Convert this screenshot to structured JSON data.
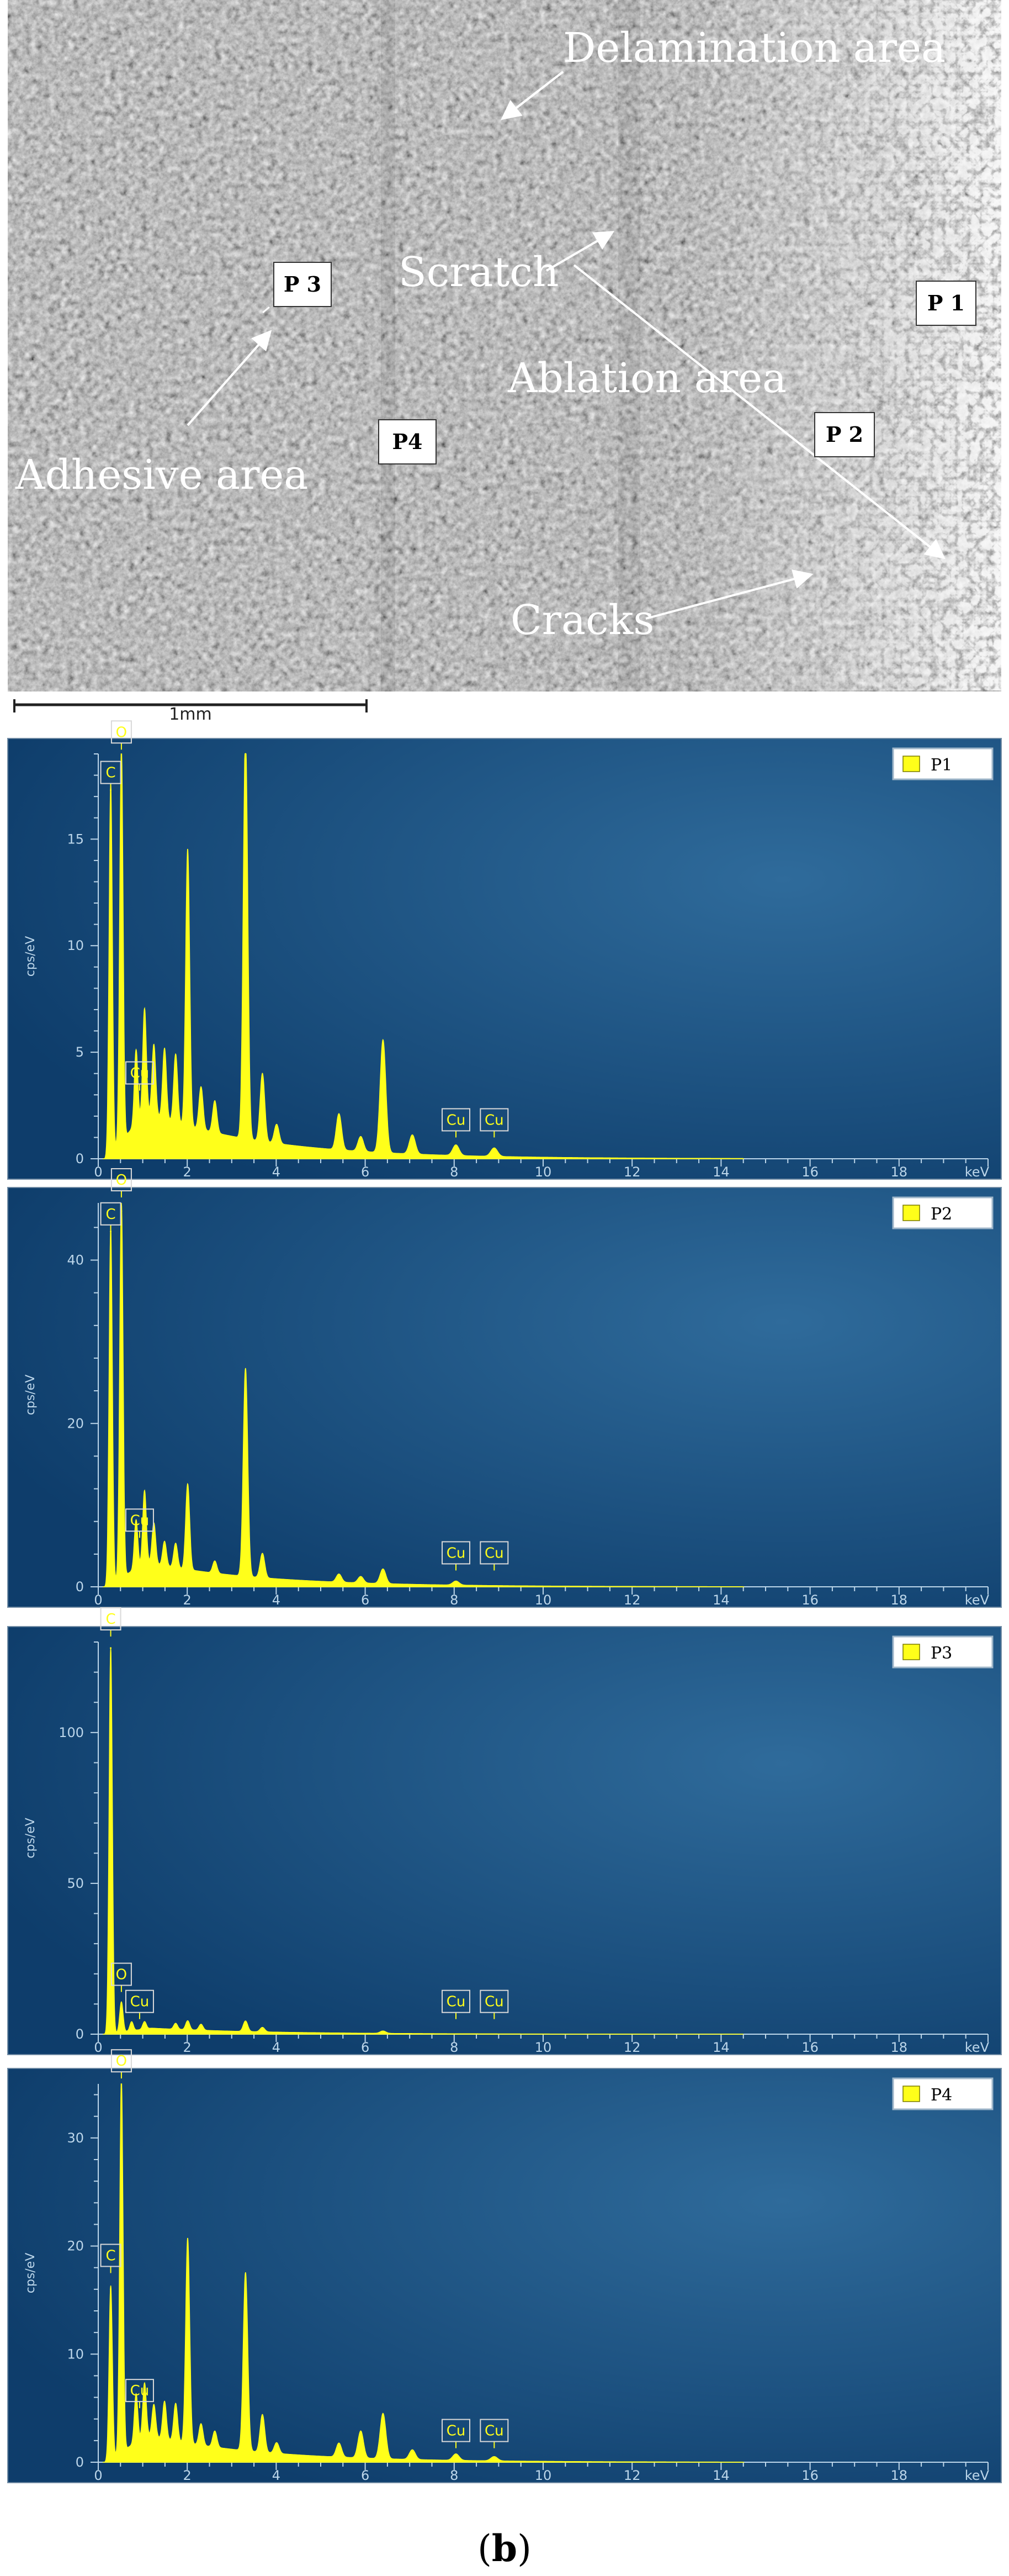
{
  "colors": {
    "panel_bg": "#0e3d6b",
    "panel_bg_light": "#2f6b9b",
    "spectrum": "#ffff1a",
    "axis_text": "#bcd6ea",
    "sem_base": "#808080"
  },
  "sem": {
    "labels": {
      "delamination": "Delamination area",
      "scratch": "Scratch",
      "ablation": "Ablation area",
      "adhesive": "Adhesive area",
      "cracks": "Cracks"
    },
    "points": [
      "P 1",
      "P 2",
      "P 3",
      "P4"
    ],
    "scale_bar": "1mm"
  },
  "caption": {
    "open": "(",
    "letter": "b",
    "close": ")"
  },
  "chart_data": [
    {
      "type": "line",
      "title": "",
      "legend": "P1",
      "legend_position": "top-right",
      "xlabel": "keV",
      "ylabel": "cps/eV",
      "xlim": [
        0,
        20
      ],
      "ylim": [
        0,
        19
      ],
      "x_ticks": [
        0,
        2,
        4,
        6,
        8,
        10,
        12,
        14,
        16,
        18
      ],
      "y_ticks": [
        0,
        5,
        10,
        15
      ],
      "annotations": [
        {
          "label": "C",
          "x": 0.28,
          "y": 17.3
        },
        {
          "label": "O",
          "x": 0.52,
          "y": 19.2
        },
        {
          "label": "Cu",
          "x": 0.93,
          "y": 3.2
        },
        {
          "label": "Cu",
          "x": 8.04,
          "y": 1.0
        },
        {
          "label": "Cu",
          "x": 8.9,
          "y": 1.0
        }
      ],
      "peaks": [
        {
          "x": 0.28,
          "y": 17.3
        },
        {
          "x": 0.52,
          "y": 18.5
        },
        {
          "x": 0.85,
          "y": 3.5
        },
        {
          "x": 1.04,
          "y": 5.0
        },
        {
          "x": 1.25,
          "y": 3.3
        },
        {
          "x": 1.49,
          "y": 3.3
        },
        {
          "x": 1.74,
          "y": 3.2
        },
        {
          "x": 2.01,
          "y": 13.0
        },
        {
          "x": 2.31,
          "y": 2.0
        },
        {
          "x": 2.62,
          "y": 1.5
        },
        {
          "x": 3.31,
          "y": 19.0
        },
        {
          "x": 3.69,
          "y": 3.2
        },
        {
          "x": 4.01,
          "y": 0.9
        },
        {
          "x": 5.41,
          "y": 1.7
        },
        {
          "x": 5.9,
          "y": 0.7
        },
        {
          "x": 6.4,
          "y": 5.3
        },
        {
          "x": 7.06,
          "y": 0.9
        },
        {
          "x": 8.04,
          "y": 0.5
        },
        {
          "x": 8.9,
          "y": 0.4
        }
      ],
      "background": {
        "max": 2.2,
        "at": 1.1
      }
    },
    {
      "type": "line",
      "title": "",
      "legend": "P2",
      "legend_position": "top-right",
      "xlabel": "keV",
      "ylabel": "cps/eV",
      "xlim": [
        0,
        20
      ],
      "ylim": [
        0,
        47
      ],
      "x_ticks": [
        0,
        2,
        4,
        6,
        8,
        10,
        12,
        14,
        16,
        18
      ],
      "y_ticks": [
        0,
        20,
        40
      ],
      "annotations": [
        {
          "label": "C",
          "x": 0.28,
          "y": 43.5
        },
        {
          "label": "O",
          "x": 0.52,
          "y": 48.0
        },
        {
          "label": "Cu",
          "x": 0.93,
          "y": 6.0
        },
        {
          "label": "Cu",
          "x": 8.04,
          "y": 2.0
        },
        {
          "label": "Cu",
          "x": 8.9,
          "y": 2.0
        }
      ],
      "peaks": [
        {
          "x": 0.28,
          "y": 43.5
        },
        {
          "x": 0.52,
          "y": 46.0
        },
        {
          "x": 0.85,
          "y": 6.0
        },
        {
          "x": 1.04,
          "y": 9.0
        },
        {
          "x": 1.25,
          "y": 5.0
        },
        {
          "x": 1.49,
          "y": 3.0
        },
        {
          "x": 1.74,
          "y": 3.0
        },
        {
          "x": 2.01,
          "y": 10.5
        },
        {
          "x": 2.62,
          "y": 1.5
        },
        {
          "x": 3.31,
          "y": 25.5
        },
        {
          "x": 3.69,
          "y": 3.0
        },
        {
          "x": 5.41,
          "y": 1.0
        },
        {
          "x": 5.9,
          "y": 0.8
        },
        {
          "x": 6.4,
          "y": 1.8
        },
        {
          "x": 8.04,
          "y": 0.5
        }
      ],
      "background": {
        "max": 3.0,
        "at": 1.1
      }
    },
    {
      "type": "line",
      "title": "",
      "legend": "P3",
      "legend_position": "top-right",
      "xlabel": "keV",
      "ylabel": "cps/eV",
      "xlim": [
        0,
        20
      ],
      "ylim": [
        0,
        130
      ],
      "x_ticks": [
        0,
        2,
        4,
        6,
        8,
        10,
        12,
        14,
        16,
        18
      ],
      "y_ticks": [
        0,
        50,
        100
      ],
      "annotations": [
        {
          "label": "C",
          "x": 0.28,
          "y": 132.0
        },
        {
          "label": "O",
          "x": 0.52,
          "y": 14.0
        },
        {
          "label": "Cu",
          "x": 0.93,
          "y": 5.0
        },
        {
          "label": "Cu",
          "x": 8.04,
          "y": 5.0
        },
        {
          "label": "Cu",
          "x": 8.9,
          "y": 5.0
        }
      ],
      "peaks": [
        {
          "x": 0.28,
          "y": 128.0
        },
        {
          "x": 0.52,
          "y": 10.0
        },
        {
          "x": 0.75,
          "y": 3.0
        },
        {
          "x": 1.04,
          "y": 2.5
        },
        {
          "x": 1.74,
          "y": 2.0
        },
        {
          "x": 2.01,
          "y": 3.0
        },
        {
          "x": 2.31,
          "y": 2.0
        },
        {
          "x": 3.31,
          "y": 3.5
        },
        {
          "x": 3.69,
          "y": 1.5
        },
        {
          "x": 6.4,
          "y": 0.8
        }
      ],
      "background": {
        "max": 2.0,
        "at": 1.2
      }
    },
    {
      "type": "line",
      "title": "",
      "legend": "P4",
      "legend_position": "top-right",
      "xlabel": "keV",
      "ylabel": "cps/eV",
      "xlim": [
        0,
        20
      ],
      "ylim": [
        0,
        35
      ],
      "x_ticks": [
        0,
        2,
        4,
        6,
        8,
        10,
        12,
        14,
        16,
        18
      ],
      "y_ticks": [
        0,
        10,
        20,
        30
      ],
      "annotations": [
        {
          "label": "C",
          "x": 0.28,
          "y": 17.5
        },
        {
          "label": "O",
          "x": 0.52,
          "y": 35.5
        },
        {
          "label": "Cu",
          "x": 0.93,
          "y": 5.0
        },
        {
          "label": "Cu",
          "x": 8.04,
          "y": 1.3
        },
        {
          "label": "Cu",
          "x": 8.9,
          "y": 1.3
        }
      ],
      "peaks": [
        {
          "x": 0.28,
          "y": 16.0
        },
        {
          "x": 0.52,
          "y": 34.5
        },
        {
          "x": 0.85,
          "y": 4.5
        },
        {
          "x": 1.04,
          "y": 5.0
        },
        {
          "x": 1.25,
          "y": 3.0
        },
        {
          "x": 1.49,
          "y": 3.5
        },
        {
          "x": 1.74,
          "y": 3.5
        },
        {
          "x": 2.01,
          "y": 19.0
        },
        {
          "x": 2.31,
          "y": 2.0
        },
        {
          "x": 2.62,
          "y": 1.5
        },
        {
          "x": 3.31,
          "y": 16.5
        },
        {
          "x": 3.69,
          "y": 3.5
        },
        {
          "x": 4.01,
          "y": 1.0
        },
        {
          "x": 5.41,
          "y": 1.3
        },
        {
          "x": 5.9,
          "y": 2.5
        },
        {
          "x": 6.4,
          "y": 4.2
        },
        {
          "x": 7.06,
          "y": 0.9
        },
        {
          "x": 8.04,
          "y": 0.6
        },
        {
          "x": 8.9,
          "y": 0.4
        }
      ],
      "background": {
        "max": 2.5,
        "at": 1.1
      }
    }
  ]
}
